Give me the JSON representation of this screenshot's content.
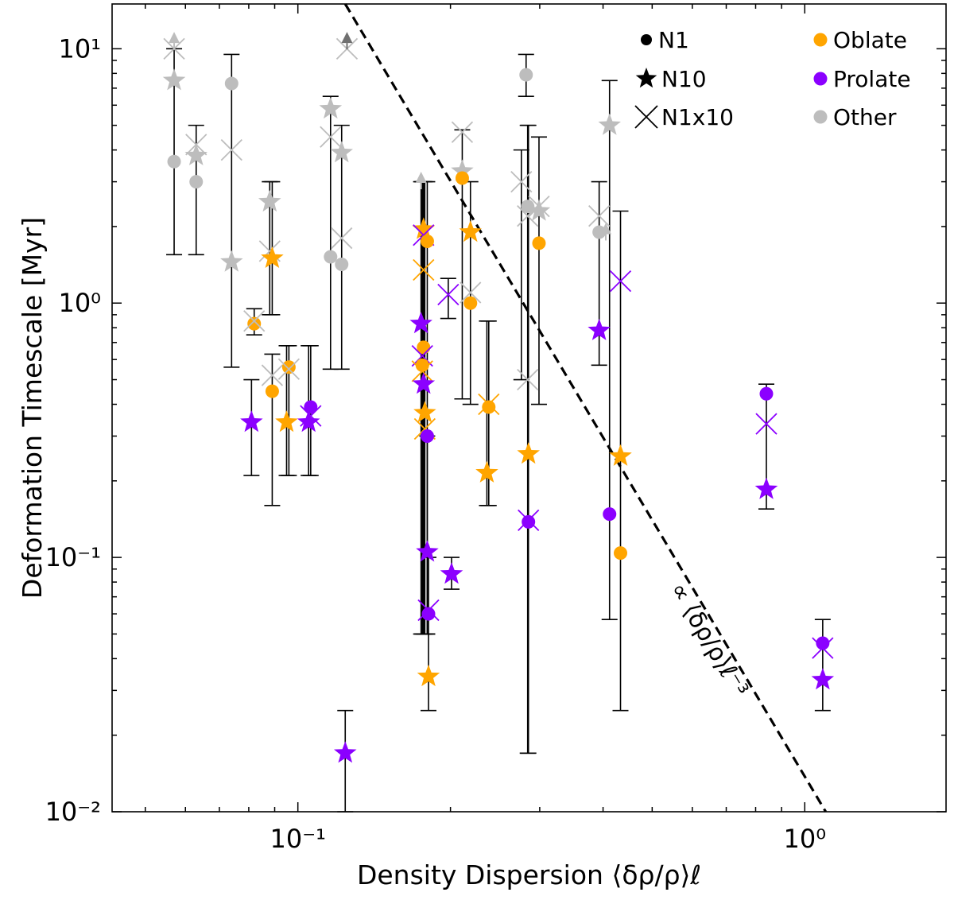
{
  "chart_data": {
    "type": "scatter",
    "title": "",
    "xlabel": "Density Dispersion ⟨δρ/ρ⟩ℓ",
    "ylabel": "Deformation Timescale [Myr]",
    "xscale": "log",
    "yscale": "log",
    "xlim": [
      0.043,
      1.9
    ],
    "ylim": [
      0.01,
      15
    ],
    "x_ticks": [
      {
        "value": 0.1,
        "label": "10⁻¹"
      },
      {
        "value": 1,
        "label": "10⁰"
      }
    ],
    "y_ticks": [
      {
        "value": 0.01,
        "label": "10⁻²"
      },
      {
        "value": 0.1,
        "label": "10⁻¹"
      },
      {
        "value": 1,
        "label": "10⁰"
      },
      {
        "value": 10,
        "label": "10¹"
      }
    ],
    "colors": {
      "Oblate": "#ffa500",
      "Prolate": "#8b00ff",
      "Other": "#bdbdbd"
    },
    "legend_shapes": [
      {
        "label": "N1",
        "marker": "circle"
      },
      {
        "label": "N10",
        "marker": "star"
      },
      {
        "label": "N1x10",
        "marker": "x"
      }
    ],
    "legend_colors": [
      {
        "label": "Oblate"
      },
      {
        "label": "Prolate"
      },
      {
        "label": "Other"
      }
    ],
    "legend_position": "top-right",
    "fit_line": {
      "label": "∝ ⟨δρ/ρ⟩ℓ⁻³",
      "x": [
        0.124,
        1.1
      ],
      "y": [
        15,
        0.01
      ],
      "style": "dashed"
    },
    "points": [
      {
        "m": "star",
        "c": "Other",
        "x": 0.057,
        "y": 7.5,
        "lo": 1.55,
        "hi": 10
      },
      {
        "m": "circle",
        "c": "Other",
        "x": 0.057,
        "y": 3.6,
        "lo": 1.55,
        "hi": 10
      },
      {
        "m": "x",
        "c": "Other",
        "x": 0.057,
        "y": 10,
        "lo": 1.55,
        "hi": 10
      },
      {
        "m": "arrow",
        "c": "Other",
        "x": 0.057,
        "y": 11
      },
      {
        "m": "star",
        "c": "Other",
        "x": 0.063,
        "y": 3.8,
        "lo": 1.55,
        "hi": 5.0
      },
      {
        "m": "circle",
        "c": "Other",
        "x": 0.063,
        "y": 3.0,
        "lo": 1.55,
        "hi": 5.0
      },
      {
        "m": "x",
        "c": "Other",
        "x": 0.063,
        "y": 4.2,
        "lo": 1.55,
        "hi": 5.0
      },
      {
        "m": "star",
        "c": "Other",
        "x": 0.074,
        "y": 1.45,
        "lo": 0.56,
        "hi": 9.5
      },
      {
        "m": "circle",
        "c": "Other",
        "x": 0.074,
        "y": 7.3,
        "lo": 0.56,
        "hi": 9.5
      },
      {
        "m": "x",
        "c": "Other",
        "x": 0.074,
        "y": 4.0,
        "lo": 0.56,
        "hi": 9.5
      },
      {
        "m": "star",
        "c": "Prolate",
        "x": 0.081,
        "y": 0.34,
        "lo": 0.21,
        "hi": 0.5
      },
      {
        "m": "circle",
        "c": "Oblate",
        "x": 0.082,
        "y": 0.83,
        "lo": 0.75,
        "hi": 0.95
      },
      {
        "m": "x",
        "c": "Other",
        "x": 0.082,
        "y": 0.85,
        "lo": 0.75,
        "hi": 0.95
      },
      {
        "m": "star",
        "c": "Other",
        "x": 0.088,
        "y": 2.5,
        "lo": 0.9,
        "hi": 3.0
      },
      {
        "m": "x",
        "c": "Other",
        "x": 0.088,
        "y": 1.6,
        "lo": 0.9,
        "hi": 3.0
      },
      {
        "m": "star",
        "c": "Oblate",
        "x": 0.089,
        "y": 1.5,
        "lo": 0.9,
        "hi": 3.0
      },
      {
        "m": "circle",
        "c": "Oblate",
        "x": 0.089,
        "y": 0.45,
        "lo": 0.16,
        "hi": 0.63
      },
      {
        "m": "x",
        "c": "Other",
        "x": 0.089,
        "y": 0.52,
        "lo": 0.16,
        "hi": 0.63
      },
      {
        "m": "star",
        "c": "Oblate",
        "x": 0.095,
        "y": 0.34,
        "lo": 0.21,
        "hi": 0.68
      },
      {
        "m": "circle",
        "c": "Oblate",
        "x": 0.096,
        "y": 0.56,
        "lo": 0.21,
        "hi": 0.68
      },
      {
        "m": "x",
        "c": "Other",
        "x": 0.096,
        "y": 0.55,
        "lo": 0.21,
        "hi": 0.68
      },
      {
        "m": "star",
        "c": "Prolate",
        "x": 0.105,
        "y": 0.34,
        "lo": 0.21,
        "hi": 0.68
      },
      {
        "m": "circle",
        "c": "Prolate",
        "x": 0.106,
        "y": 0.39,
        "lo": 0.21,
        "hi": 0.68
      },
      {
        "m": "x",
        "c": "Prolate",
        "x": 0.106,
        "y": 0.36,
        "lo": 0.21,
        "hi": 0.68
      },
      {
        "m": "star",
        "c": "Prolate",
        "x": 0.124,
        "y": 0.017,
        "lo": 0.01,
        "hi": 0.025
      },
      {
        "m": "star",
        "c": "Other",
        "x": 0.116,
        "y": 5.8,
        "lo": 0.55,
        "hi": 6.5
      },
      {
        "m": "x",
        "c": "Other",
        "x": 0.116,
        "y": 4.5,
        "lo": 0.55,
        "hi": 6.5
      },
      {
        "m": "circle",
        "c": "Other",
        "x": 0.116,
        "y": 1.52,
        "lo": 0.55,
        "hi": 6.5
      },
      {
        "m": "star",
        "c": "Other",
        "x": 0.122,
        "y": 3.9,
        "lo": 0.55,
        "hi": 5.0
      },
      {
        "m": "x",
        "c": "Other",
        "x": 0.122,
        "y": 1.8,
        "lo": 0.55,
        "hi": 5.0
      },
      {
        "m": "circle",
        "c": "Other",
        "x": 0.122,
        "y": 1.42,
        "lo": 0.55,
        "hi": 5.0
      },
      {
        "m": "x",
        "c": "Other",
        "x": 0.125,
        "y": 10,
        "lo": 10,
        "hi": 10
      },
      {
        "m": "arrow",
        "c": "Dark",
        "x": 0.125,
        "y": 11
      },
      {
        "m": "arrow",
        "c": "Other",
        "x": 0.175,
        "y": 3.1
      },
      {
        "m": "star",
        "c": "Prolate",
        "x": 0.175,
        "y": 0.83,
        "lo": 0.05,
        "hi": 3.0
      },
      {
        "m": "star",
        "c": "Oblate",
        "x": 0.177,
        "y": 1.95,
        "lo": 0.05,
        "hi": 3.0
      },
      {
        "m": "x",
        "c": "Prolate",
        "x": 0.177,
        "y": 1.85,
        "lo": 0.05,
        "hi": 3.0
      },
      {
        "m": "x",
        "c": "Oblate",
        "x": 0.177,
        "y": 1.35,
        "lo": 0.05,
        "hi": 3.0
      },
      {
        "m": "circle",
        "c": "Oblate",
        "x": 0.177,
        "y": 0.67,
        "lo": 0.05,
        "hi": 3.0
      },
      {
        "m": "x",
        "c": "Prolate",
        "x": 0.176,
        "y": 0.62,
        "lo": 0.05,
        "hi": 3.0
      },
      {
        "m": "circle",
        "c": "Oblate",
        "x": 0.176,
        "y": 0.57,
        "lo": 0.05,
        "hi": 3.0
      },
      {
        "m": "x",
        "c": "Oblate",
        "x": 0.176,
        "y": 0.54,
        "lo": 0.05,
        "hi": 3.0
      },
      {
        "m": "star",
        "c": "Prolate",
        "x": 0.177,
        "y": 0.48,
        "lo": 0.05,
        "hi": 3.0
      },
      {
        "m": "star",
        "c": "Oblate",
        "x": 0.178,
        "y": 0.37,
        "lo": 0.05,
        "hi": 3.0
      },
      {
        "m": "x",
        "c": "Oblate",
        "x": 0.178,
        "y": 0.32,
        "lo": 0.05,
        "hi": 3.0
      },
      {
        "m": "circle",
        "c": "Prolate",
        "x": 0.18,
        "y": 0.3,
        "lo": 0.05,
        "hi": 3.0
      },
      {
        "m": "circle",
        "c": "Oblate",
        "x": 0.18,
        "y": 1.75,
        "lo": 0.05,
        "hi": 3.0
      },
      {
        "m": "star",
        "c": "Prolate",
        "x": 0.18,
        "y": 0.105,
        "lo": 0.05,
        "hi": 0.3
      },
      {
        "m": "circle",
        "c": "Prolate",
        "x": 0.181,
        "y": 0.06,
        "lo": 0.025,
        "hi": 0.1
      },
      {
        "m": "x",
        "c": "Prolate",
        "x": 0.181,
        "y": 0.062,
        "lo": 0.025,
        "hi": 0.1
      },
      {
        "m": "star",
        "c": "Oblate",
        "x": 0.181,
        "y": 0.034,
        "lo": 0.025,
        "hi": 0.1
      },
      {
        "m": "x",
        "c": "Prolate",
        "x": 0.198,
        "y": 1.08,
        "lo": 0.87,
        "hi": 1.25
      },
      {
        "m": "star",
        "c": "Prolate",
        "x": 0.201,
        "y": 0.086,
        "lo": 0.075,
        "hi": 0.1
      },
      {
        "m": "star",
        "c": "Other",
        "x": 0.211,
        "y": 3.3,
        "lo": 0.42,
        "hi": 4.8
      },
      {
        "m": "circle",
        "c": "Oblate",
        "x": 0.211,
        "y": 3.1,
        "lo": 0.42,
        "hi": 4.8
      },
      {
        "m": "x",
        "c": "Other",
        "x": 0.211,
        "y": 4.7,
        "lo": 0.42,
        "hi": 4.8
      },
      {
        "m": "star",
        "c": "Oblate",
        "x": 0.219,
        "y": 1.9,
        "lo": 0.4,
        "hi": 3.0
      },
      {
        "m": "circle",
        "c": "Oblate",
        "x": 0.219,
        "y": 1.0,
        "lo": 0.4,
        "hi": 3.0
      },
      {
        "m": "x",
        "c": "Other",
        "x": 0.219,
        "y": 1.1,
        "lo": 0.4,
        "hi": 3.0
      },
      {
        "m": "star",
        "c": "Oblate",
        "x": 0.236,
        "y": 0.215,
        "lo": 0.16,
        "hi": 0.85
      },
      {
        "m": "circle",
        "c": "Oblate",
        "x": 0.238,
        "y": 0.39,
        "lo": 0.16,
        "hi": 0.85
      },
      {
        "m": "x",
        "c": "Oblate",
        "x": 0.238,
        "y": 0.4,
        "lo": 0.16,
        "hi": 0.85
      },
      {
        "m": "x",
        "c": "Other",
        "x": 0.276,
        "y": 3.0,
        "lo": 0.5,
        "hi": 4.0
      },
      {
        "m": "circle",
        "c": "Other",
        "x": 0.282,
        "y": 7.9,
        "lo": 6.5,
        "hi": 9.5
      },
      {
        "m": "circle",
        "c": "Other",
        "x": 0.284,
        "y": 2.4,
        "lo": 0.017,
        "hi": 5.0
      },
      {
        "m": "x",
        "c": "Other",
        "x": 0.284,
        "y": 2.2,
        "lo": 0.017,
        "hi": 5.0
      },
      {
        "m": "x",
        "c": "Other",
        "x": 0.284,
        "y": 0.5,
        "lo": 0.017,
        "hi": 5.0
      },
      {
        "m": "star",
        "c": "Oblate",
        "x": 0.285,
        "y": 0.255,
        "lo": 0.017,
        "hi": 5.0
      },
      {
        "m": "circle",
        "c": "Prolate",
        "x": 0.285,
        "y": 0.138,
        "lo": 0.017,
        "hi": 5.0
      },
      {
        "m": "x",
        "c": "Prolate",
        "x": 0.285,
        "y": 0.14,
        "lo": 0.017,
        "hi": 5.0
      },
      {
        "m": "star",
        "c": "Other",
        "x": 0.299,
        "y": 2.3,
        "lo": 0.4,
        "hi": 4.5
      },
      {
        "m": "circle",
        "c": "Oblate",
        "x": 0.299,
        "y": 1.72,
        "lo": 0.4,
        "hi": 4.5
      },
      {
        "m": "x",
        "c": "Other",
        "x": 0.299,
        "y": 2.4,
        "lo": 0.4,
        "hi": 4.5
      },
      {
        "m": "circle",
        "c": "Other",
        "x": 0.393,
        "y": 1.9,
        "lo": 0.57,
        "hi": 3.0
      },
      {
        "m": "x",
        "c": "Other",
        "x": 0.393,
        "y": 2.2,
        "lo": 0.57,
        "hi": 3.0
      },
      {
        "m": "star",
        "c": "Prolate",
        "x": 0.393,
        "y": 0.78,
        "lo": 0.57,
        "hi": 3.0
      },
      {
        "m": "arrow",
        "c": "Other",
        "x": 0.405,
        "y": 1.95
      },
      {
        "m": "star",
        "c": "Other",
        "x": 0.412,
        "y": 5.0,
        "lo": 0.057,
        "hi": 7.5
      },
      {
        "m": "circle",
        "c": "Prolate",
        "x": 0.412,
        "y": 0.148,
        "lo": 0.057,
        "hi": 7.5
      },
      {
        "m": "x",
        "c": "Prolate",
        "x": 0.433,
        "y": 1.22,
        "lo": 0.025,
        "hi": 2.3
      },
      {
        "m": "star",
        "c": "Oblate",
        "x": 0.433,
        "y": 0.25,
        "lo": 0.025,
        "hi": 2.3
      },
      {
        "m": "circle",
        "c": "Oblate",
        "x": 0.433,
        "y": 0.104,
        "lo": 0.025,
        "hi": 2.3
      },
      {
        "m": "circle",
        "c": "Prolate",
        "x": 0.84,
        "y": 0.44,
        "lo": 0.155,
        "hi": 0.48
      },
      {
        "m": "x",
        "c": "Prolate",
        "x": 0.84,
        "y": 0.335,
        "lo": 0.155,
        "hi": 0.48
      },
      {
        "m": "star",
        "c": "Prolate",
        "x": 0.84,
        "y": 0.185,
        "lo": 0.155,
        "hi": 0.48
      },
      {
        "m": "circle",
        "c": "Prolate",
        "x": 1.085,
        "y": 0.046,
        "lo": 0.025,
        "hi": 0.057
      },
      {
        "m": "x",
        "c": "Prolate",
        "x": 1.085,
        "y": 0.044,
        "lo": 0.025,
        "hi": 0.057
      },
      {
        "m": "star",
        "c": "Prolate",
        "x": 1.085,
        "y": 0.033,
        "lo": 0.025,
        "hi": 0.057
      }
    ]
  }
}
